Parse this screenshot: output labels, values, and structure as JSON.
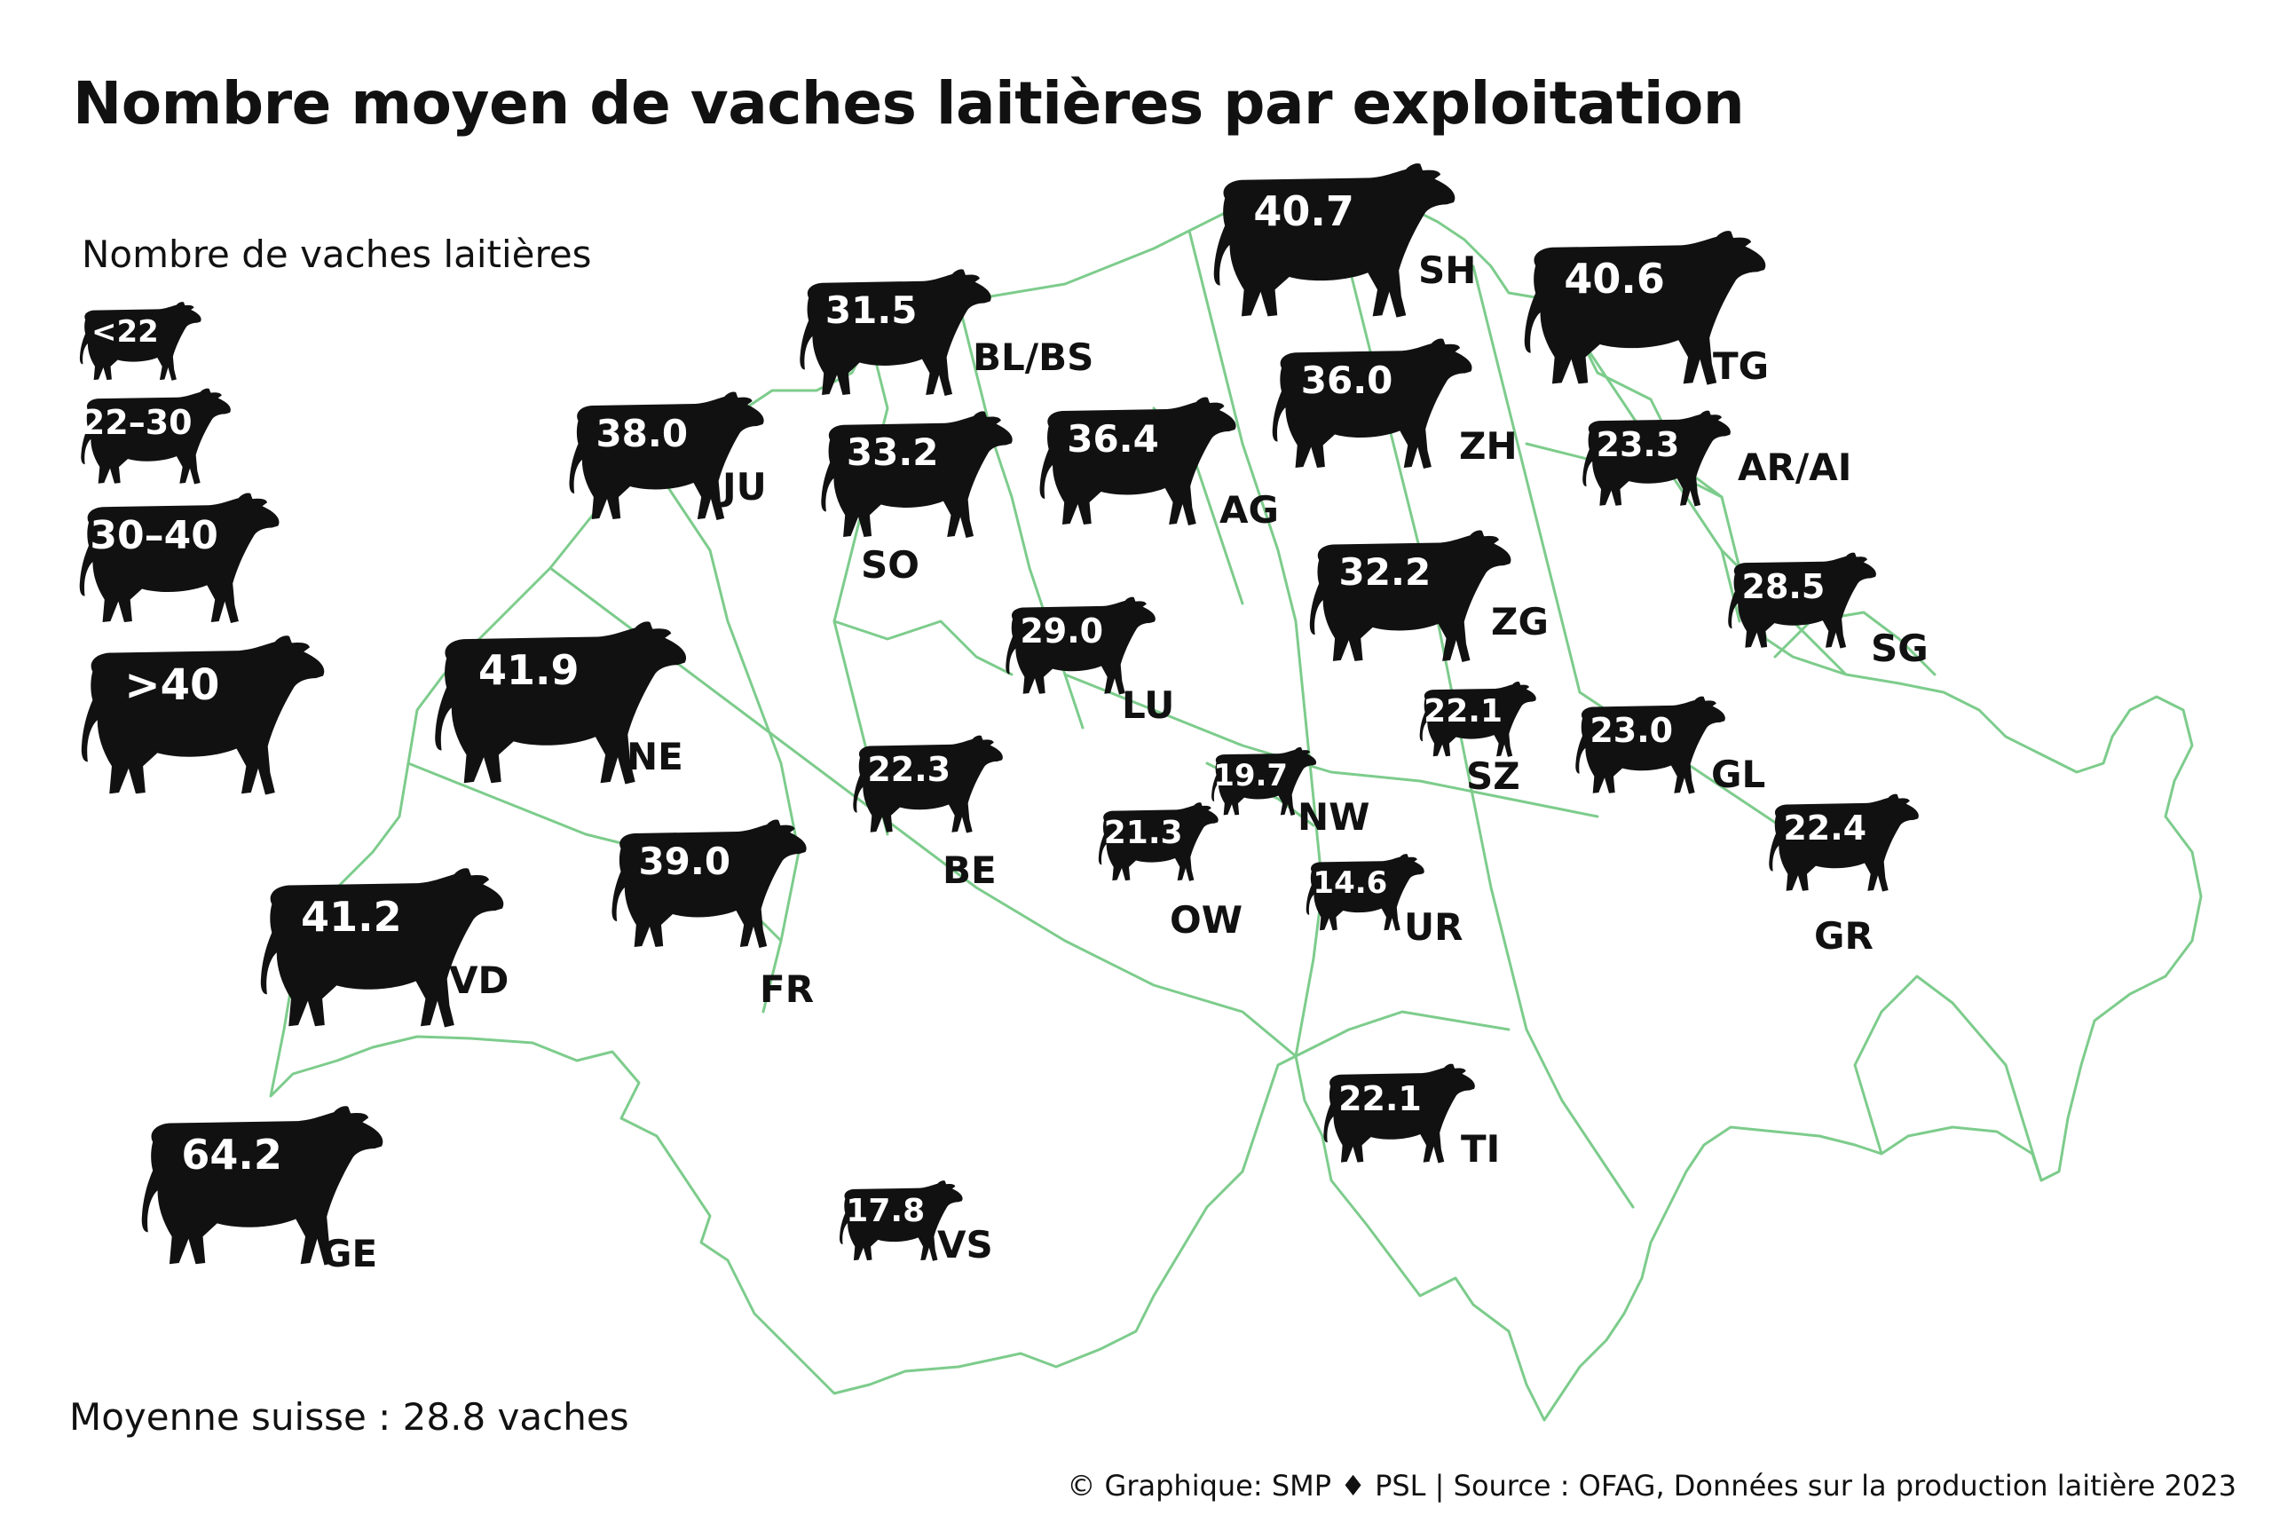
{
  "title": "Nombre moyen de vaches laitières par exploitation",
  "legend": {
    "title": "Nombre de vaches laitières",
    "items": [
      {
        "label": "<22",
        "icon": "cow-icon"
      },
      {
        "label": "22–30",
        "icon": "cow-icon"
      },
      {
        "label": "30–40",
        "icon": "cow-icon"
      },
      {
        "label": ">40",
        "icon": "cow-icon"
      }
    ]
  },
  "average": "Moyenne suisse : 28.8 vaches",
  "credit": "© Graphique: SMP ♦ PSL | Source : OFAG, Données sur la production laitière 2023",
  "colors": {
    "cow": "#111111",
    "border": "#7dcc8c",
    "text": "#111111",
    "value": "#ffffff"
  },
  "cantons": [
    {
      "code": "SH",
      "value": "40.7"
    },
    {
      "code": "TG",
      "value": "40.6"
    },
    {
      "code": "BL/BS",
      "value": "31.5"
    },
    {
      "code": "ZH",
      "value": "36.0"
    },
    {
      "code": "JU",
      "value": "38.0"
    },
    {
      "code": "SO",
      "value": "33.2"
    },
    {
      "code": "AG",
      "value": "36.4"
    },
    {
      "code": "AR/AI",
      "value": "23.3"
    },
    {
      "code": "ZG",
      "value": "32.2"
    },
    {
      "code": "SG",
      "value": "28.5"
    },
    {
      "code": "LU",
      "value": "29.0"
    },
    {
      "code": "NE",
      "value": "41.9"
    },
    {
      "code": "SZ",
      "value": "22.1"
    },
    {
      "code": "GL",
      "value": "23.0"
    },
    {
      "code": "BE",
      "value": "22.3"
    },
    {
      "code": "NW",
      "value": "19.7"
    },
    {
      "code": "OW",
      "value": "21.3"
    },
    {
      "code": "GR",
      "value": "22.4"
    },
    {
      "code": "FR",
      "value": "39.0"
    },
    {
      "code": "UR",
      "value": "14.6"
    },
    {
      "code": "VD",
      "value": "41.2"
    },
    {
      "code": "TI",
      "value": "22.1"
    },
    {
      "code": "GE",
      "value": "64.2"
    },
    {
      "code": "VS",
      "value": "17.8"
    }
  ]
}
